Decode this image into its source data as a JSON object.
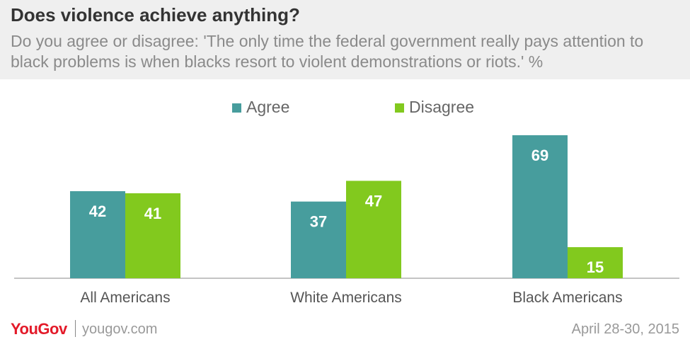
{
  "header": {
    "title": "Does violence achieve anything?",
    "subtitle": "Do you agree or disagree: 'The only time the federal government really pays attention to black problems is when blacks resort to violent demonstrations or riots.' %"
  },
  "colors": {
    "agree": "#479d9d",
    "disagree": "#82c91e",
    "header_bg": "#efefef",
    "brand": "#e31a29"
  },
  "chart_data": {
    "type": "bar",
    "categories": [
      "All Americans",
      "White Americans",
      "Black Americans"
    ],
    "series": [
      {
        "name": "Agree",
        "values": [
          42,
          37,
          69
        ]
      },
      {
        "name": "Disagree",
        "values": [
          41,
          47,
          15
        ]
      }
    ],
    "ylim": [
      0,
      80
    ],
    "grid": false,
    "legend": "top-center",
    "data_labels": true
  },
  "footer": {
    "logo": "YouGov",
    "site": "yougov.com",
    "date": "April 28-30, 2015"
  }
}
